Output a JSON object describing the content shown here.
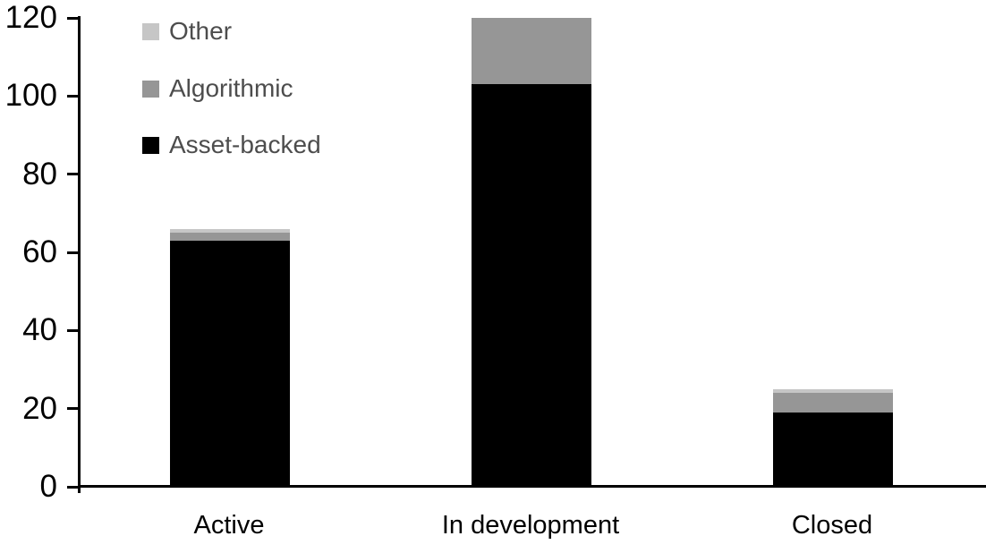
{
  "chart_data": {
    "type": "bar",
    "stacked": true,
    "title": "",
    "xlabel": "",
    "ylabel": "",
    "categories": [
      "Active",
      "In development",
      "Closed"
    ],
    "series": [
      {
        "name": "Asset-backed",
        "color": "#000000",
        "values": [
          63,
          103,
          19
        ]
      },
      {
        "name": "Algorithmic",
        "color": "#969696",
        "values": [
          2,
          17,
          5
        ]
      },
      {
        "name": "Other",
        "color": "#c6c6c6",
        "values": [
          1,
          0,
          1
        ]
      }
    ],
    "totals": [
      66,
      120,
      25
    ],
    "ylim": [
      0,
      120
    ],
    "yticks": [
      0,
      20,
      40,
      60,
      80,
      100,
      120
    ],
    "grid": false,
    "legend_position": "top-left",
    "legend_items": [
      {
        "label": "Other",
        "color": "#c6c6c6"
      },
      {
        "label": "Algorithmic",
        "color": "#969696"
      },
      {
        "label": "Asset-backed",
        "color": "#000000"
      }
    ]
  },
  "colors": {
    "background": "#ffffff",
    "axis": "#000000",
    "axis_label_text": "#000000",
    "legend_text": "#4d4d4d"
  }
}
